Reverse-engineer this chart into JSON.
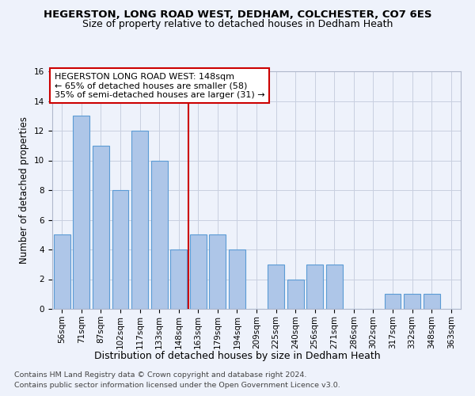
{
  "title": "HEGERSTON, LONG ROAD WEST, DEDHAM, COLCHESTER, CO7 6ES",
  "subtitle": "Size of property relative to detached houses in Dedham Heath",
  "xlabel": "Distribution of detached houses by size in Dedham Heath",
  "ylabel": "Number of detached properties",
  "categories": [
    "56sqm",
    "71sqm",
    "87sqm",
    "102sqm",
    "117sqm",
    "133sqm",
    "148sqm",
    "163sqm",
    "179sqm",
    "194sqm",
    "209sqm",
    "225sqm",
    "240sqm",
    "256sqm",
    "271sqm",
    "286sqm",
    "302sqm",
    "317sqm",
    "332sqm",
    "348sqm",
    "363sqm"
  ],
  "values": [
    5,
    13,
    11,
    8,
    12,
    10,
    4,
    5,
    5,
    4,
    0,
    3,
    2,
    3,
    3,
    0,
    0,
    1,
    1,
    1,
    0
  ],
  "highlight_index": 6,
  "bar_color": "#aec6e8",
  "bar_edge_color": "#5b9bd5",
  "highlight_line_color": "#cc0000",
  "annotation_box_text": "HEGERSTON LONG ROAD WEST: 148sqm\n← 65% of detached houses are smaller (58)\n35% of semi-detached houses are larger (31) →",
  "annotation_box_color": "#ffffff",
  "annotation_box_edge_color": "#cc0000",
  "footer_line1": "Contains HM Land Registry data © Crown copyright and database right 2024.",
  "footer_line2": "Contains public sector information licensed under the Open Government Licence v3.0.",
  "ylim": [
    0,
    16
  ],
  "yticks": [
    0,
    2,
    4,
    6,
    8,
    10,
    12,
    14,
    16
  ],
  "background_color": "#eef2fb",
  "grid_color": "#c8cfe0",
  "title_fontsize": 9.5,
  "subtitle_fontsize": 9,
  "xlabel_fontsize": 9,
  "ylabel_fontsize": 8.5,
  "tick_fontsize": 7.5,
  "annotation_fontsize": 8,
  "footer_fontsize": 6.8
}
